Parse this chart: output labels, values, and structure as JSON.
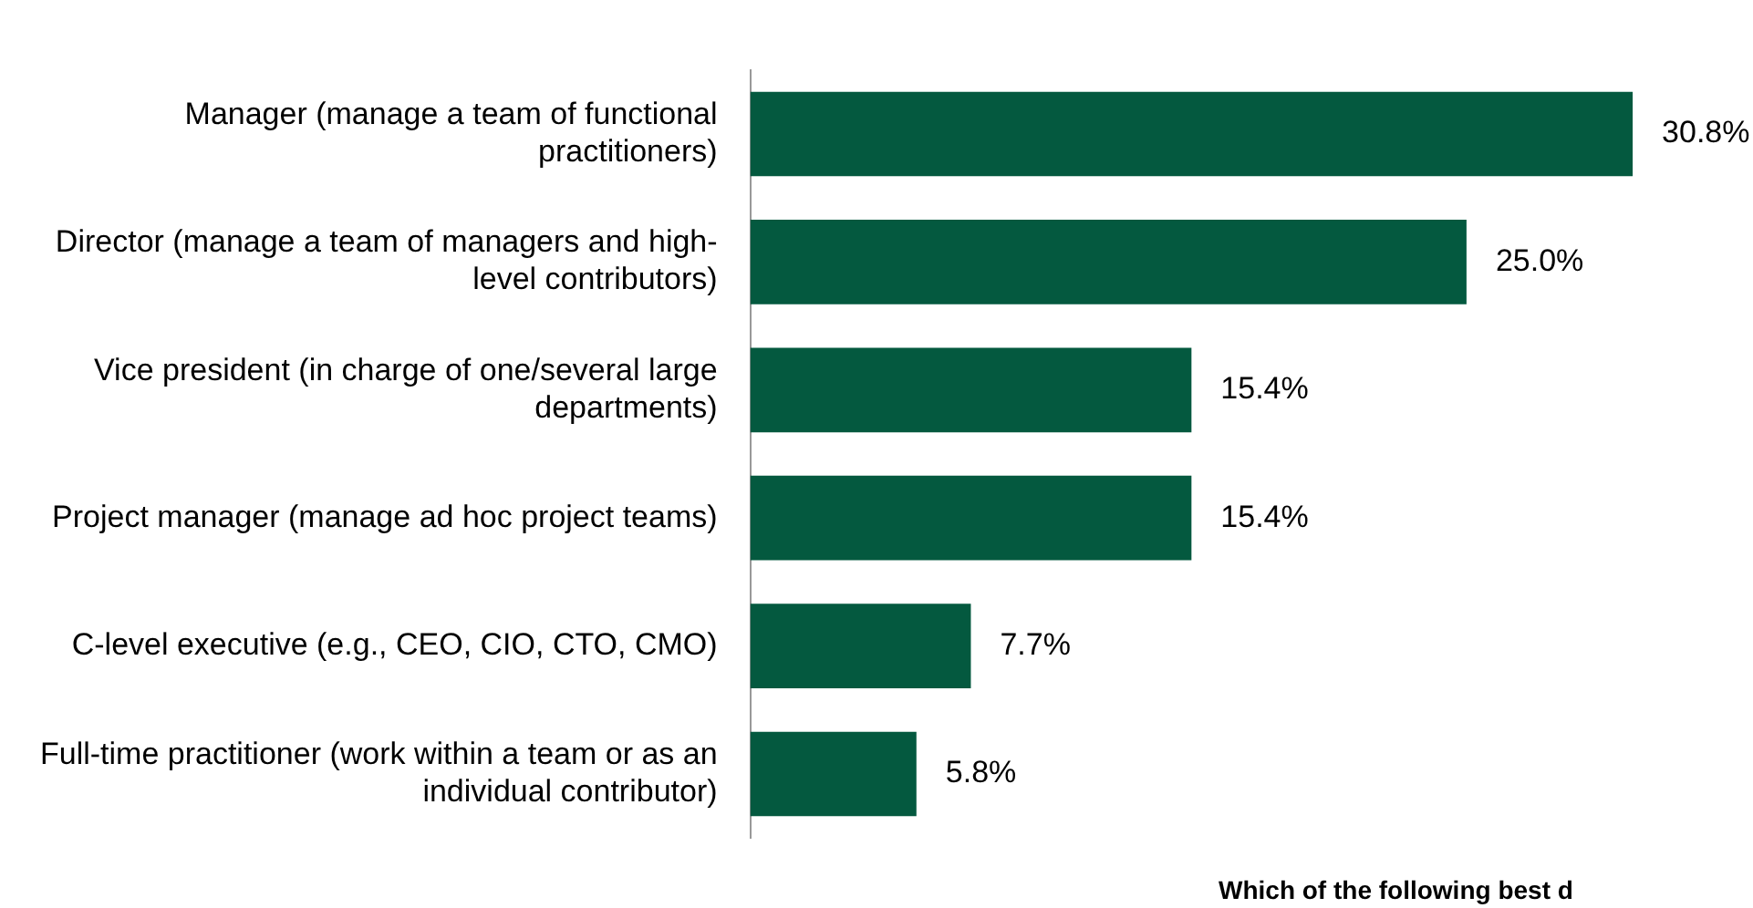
{
  "chart_data": {
    "type": "bar",
    "orientation": "horizontal",
    "categories": [
      "Manager (manage a team of functional practitioners)",
      "Director (manage a team of managers and high-level contributors)",
      "Vice president (in charge of one/several large departments)",
      "Project manager (manage ad hoc project teams)",
      "C-level executive (e.g., CEO, CIO, CTO, CMO)",
      "Full-time practitioner (work within a team or as an individual contributor)"
    ],
    "values": [
      30.8,
      25.0,
      15.4,
      15.4,
      7.7,
      5.8
    ],
    "value_labels": [
      "30.8%",
      "25.0%",
      "15.4%",
      "15.4%",
      "7.7%",
      "5.8%"
    ],
    "color": "#04593f",
    "tick_labels": "y",
    "legend": false,
    "annotations": [
      "Which of the following best d"
    ]
  }
}
